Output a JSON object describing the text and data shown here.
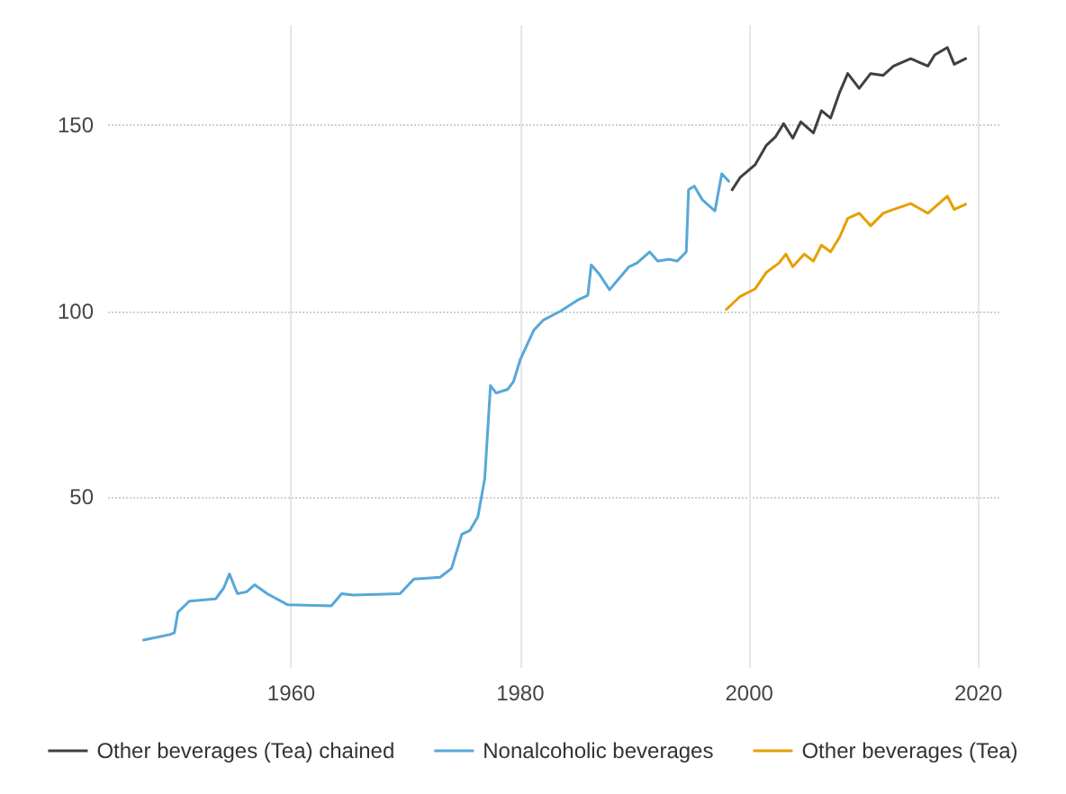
{
  "chart_data": {
    "type": "line",
    "xlim": [
      1944,
      2022
    ],
    "xticks": [
      1960,
      1980,
      2000,
      2020
    ],
    "ylim": [
      4,
      177
    ],
    "yticks": [
      50,
      100,
      150
    ],
    "grid": true,
    "legend": "bottom",
    "marker": "none",
    "line_style": "solid",
    "series": [
      {
        "name": "Other beverages (Tea) chained",
        "color": "#404040",
        "x": [
          1998.5,
          1999.2,
          2000.5,
          2001.5,
          2002.3,
          2003,
          2003.8,
          2004.5,
          2005.6,
          2006.3,
          2007.1,
          2007.9,
          2008.6,
          2009.6,
          2010.6,
          2011.7,
          2012.6,
          2014.1,
          2015.6,
          2016.2,
          2017.3,
          2017.9,
          2018.9
        ],
        "values": [
          132.7,
          136,
          139.4,
          144.7,
          147,
          150.5,
          146.6,
          151,
          148,
          154,
          152,
          159,
          164,
          160,
          164,
          163.5,
          166,
          168,
          166,
          169,
          171,
          166.5,
          168
        ]
      },
      {
        "name": "Nonalcoholic beverages",
        "color": "#56a8d8",
        "x": [
          1947.1,
          1949.4,
          1949.8,
          1950.1,
          1951.1,
          1953.4,
          1954.1,
          1954.6,
          1955.3,
          1956.1,
          1956.8,
          1957.9,
          1959.7,
          1963.5,
          1964.4,
          1965.4,
          1969.5,
          1970.7,
          1973,
          1974,
          1974.9,
          1975.6,
          1976.3,
          1976.9,
          1977.4,
          1977.9,
          1978.9,
          1979.4,
          1980,
          1981.2,
          1982,
          1983.5,
          1985,
          1985.9,
          1986.2,
          1986.9,
          1987.8,
          1988.4,
          1989.5,
          1990.2,
          1991.3,
          1992,
          1993,
          1993.7,
          1994.5,
          1994.7,
          1995.2,
          1995.9,
          1997,
          1997.6,
          1998.2
        ],
        "values": [
          11.5,
          13,
          13.5,
          19,
          22,
          22.6,
          25.5,
          29.3,
          24,
          24.5,
          26.4,
          24,
          21,
          20.7,
          24,
          23.6,
          24,
          27.9,
          28.4,
          30.8,
          40,
          41,
          44.7,
          55,
          80,
          78,
          79,
          81,
          87,
          95,
          97.6,
          100,
          103,
          104.3,
          112.5,
          110,
          105.8,
          108,
          112,
          113,
          116,
          113.5,
          114,
          113.5,
          116,
          132.7,
          133.7,
          130,
          127,
          137,
          135
        ]
      },
      {
        "name": "Other beverages (Tea)",
        "color": "#e69f00",
        "x": [
          1998,
          1999.2,
          2000.5,
          2001.5,
          2002.6,
          2003.2,
          2003.8,
          2004.8,
          2005.6,
          2006.3,
          2007.1,
          2007.9,
          2008.6,
          2009.6,
          2010.6,
          2011.7,
          2012.6,
          2014.1,
          2015.6,
          2017.3,
          2017.9,
          2018.9
        ],
        "values": [
          100.5,
          104,
          106,
          110.5,
          113,
          115.4,
          112,
          115.4,
          113.5,
          117.8,
          116,
          120,
          125,
          126.4,
          123,
          126.4,
          127.4,
          129,
          126.4,
          131,
          127.4,
          128.8
        ]
      }
    ]
  }
}
